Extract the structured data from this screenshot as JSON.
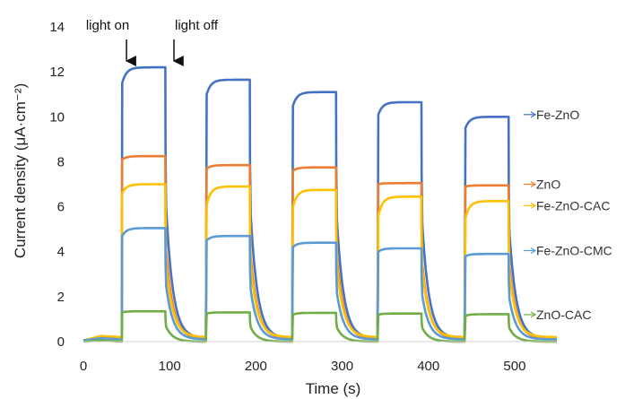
{
  "chart_data": {
    "type": "line",
    "title": "",
    "xlabel": "Time (s)",
    "ylabel": "Current density (μA·cm⁻²)",
    "xlim": [
      0,
      550
    ],
    "ylim": [
      0,
      14
    ],
    "x_ticks": [
      0,
      100,
      200,
      300,
      400,
      500
    ],
    "y_ticks": [
      0,
      2,
      4,
      6,
      8,
      10,
      12,
      14
    ],
    "grid": false,
    "legend_placement": "right",
    "annotations": [
      {
        "text": "light on",
        "x": 50
      },
      {
        "text": "light off",
        "x": 105
      }
    ],
    "light_on_times": [
      45,
      143,
      243,
      342,
      443
    ],
    "light_off_times": [
      95,
      193,
      293,
      392,
      493
    ],
    "series": [
      {
        "name": "Fe-ZnO",
        "color": "#4472c4",
        "on_rise_start": [
          11.5,
          11.0,
          10.5,
          10.1,
          9.5
        ],
        "on_plateau": [
          12.2,
          11.65,
          11.1,
          10.65,
          10.0
        ],
        "decay_end": 0.15
      },
      {
        "name": "ZnO",
        "color": "#ed7d31",
        "on_rise_start": [
          8.1,
          7.7,
          7.6,
          7.0,
          6.9
        ],
        "on_plateau": [
          8.25,
          7.85,
          7.75,
          7.05,
          6.95
        ],
        "decay_end": 0.15
      },
      {
        "name": "Fe-ZnO-CAC",
        "color": "#ffc000",
        "on_rise_start": [
          6.6,
          6.1,
          6.0,
          5.6,
          5.5
        ],
        "on_plateau": [
          7.0,
          6.9,
          6.75,
          6.45,
          6.25
        ],
        "decay_end": 0.2
      },
      {
        "name": "Fe-ZnO-CMC",
        "color": "#5b9bd5",
        "on_rise_start": [
          4.7,
          4.5,
          4.2,
          4.0,
          3.8
        ],
        "on_plateau": [
          5.05,
          4.7,
          4.4,
          4.15,
          3.9
        ],
        "decay_end": 0.1
      },
      {
        "name": "ZnO-CAC",
        "color": "#70ad47",
        "on_rise_start": [
          1.3,
          1.25,
          1.2,
          1.2,
          1.15
        ],
        "on_plateau": [
          1.35,
          1.3,
          1.28,
          1.25,
          1.22
        ],
        "decay_end": 0.0
      }
    ],
    "legend": [
      {
        "text": "Fe-ZnO",
        "y": 10.1
      },
      {
        "text": "ZnO",
        "y": 7.0
      },
      {
        "text": "Fe-ZnO-CAC",
        "y": 6.05
      },
      {
        "text": "Fe-ZnO-CMC",
        "y": 4.05
      },
      {
        "text": "ZnO-CAC",
        "y": 1.2
      }
    ]
  }
}
